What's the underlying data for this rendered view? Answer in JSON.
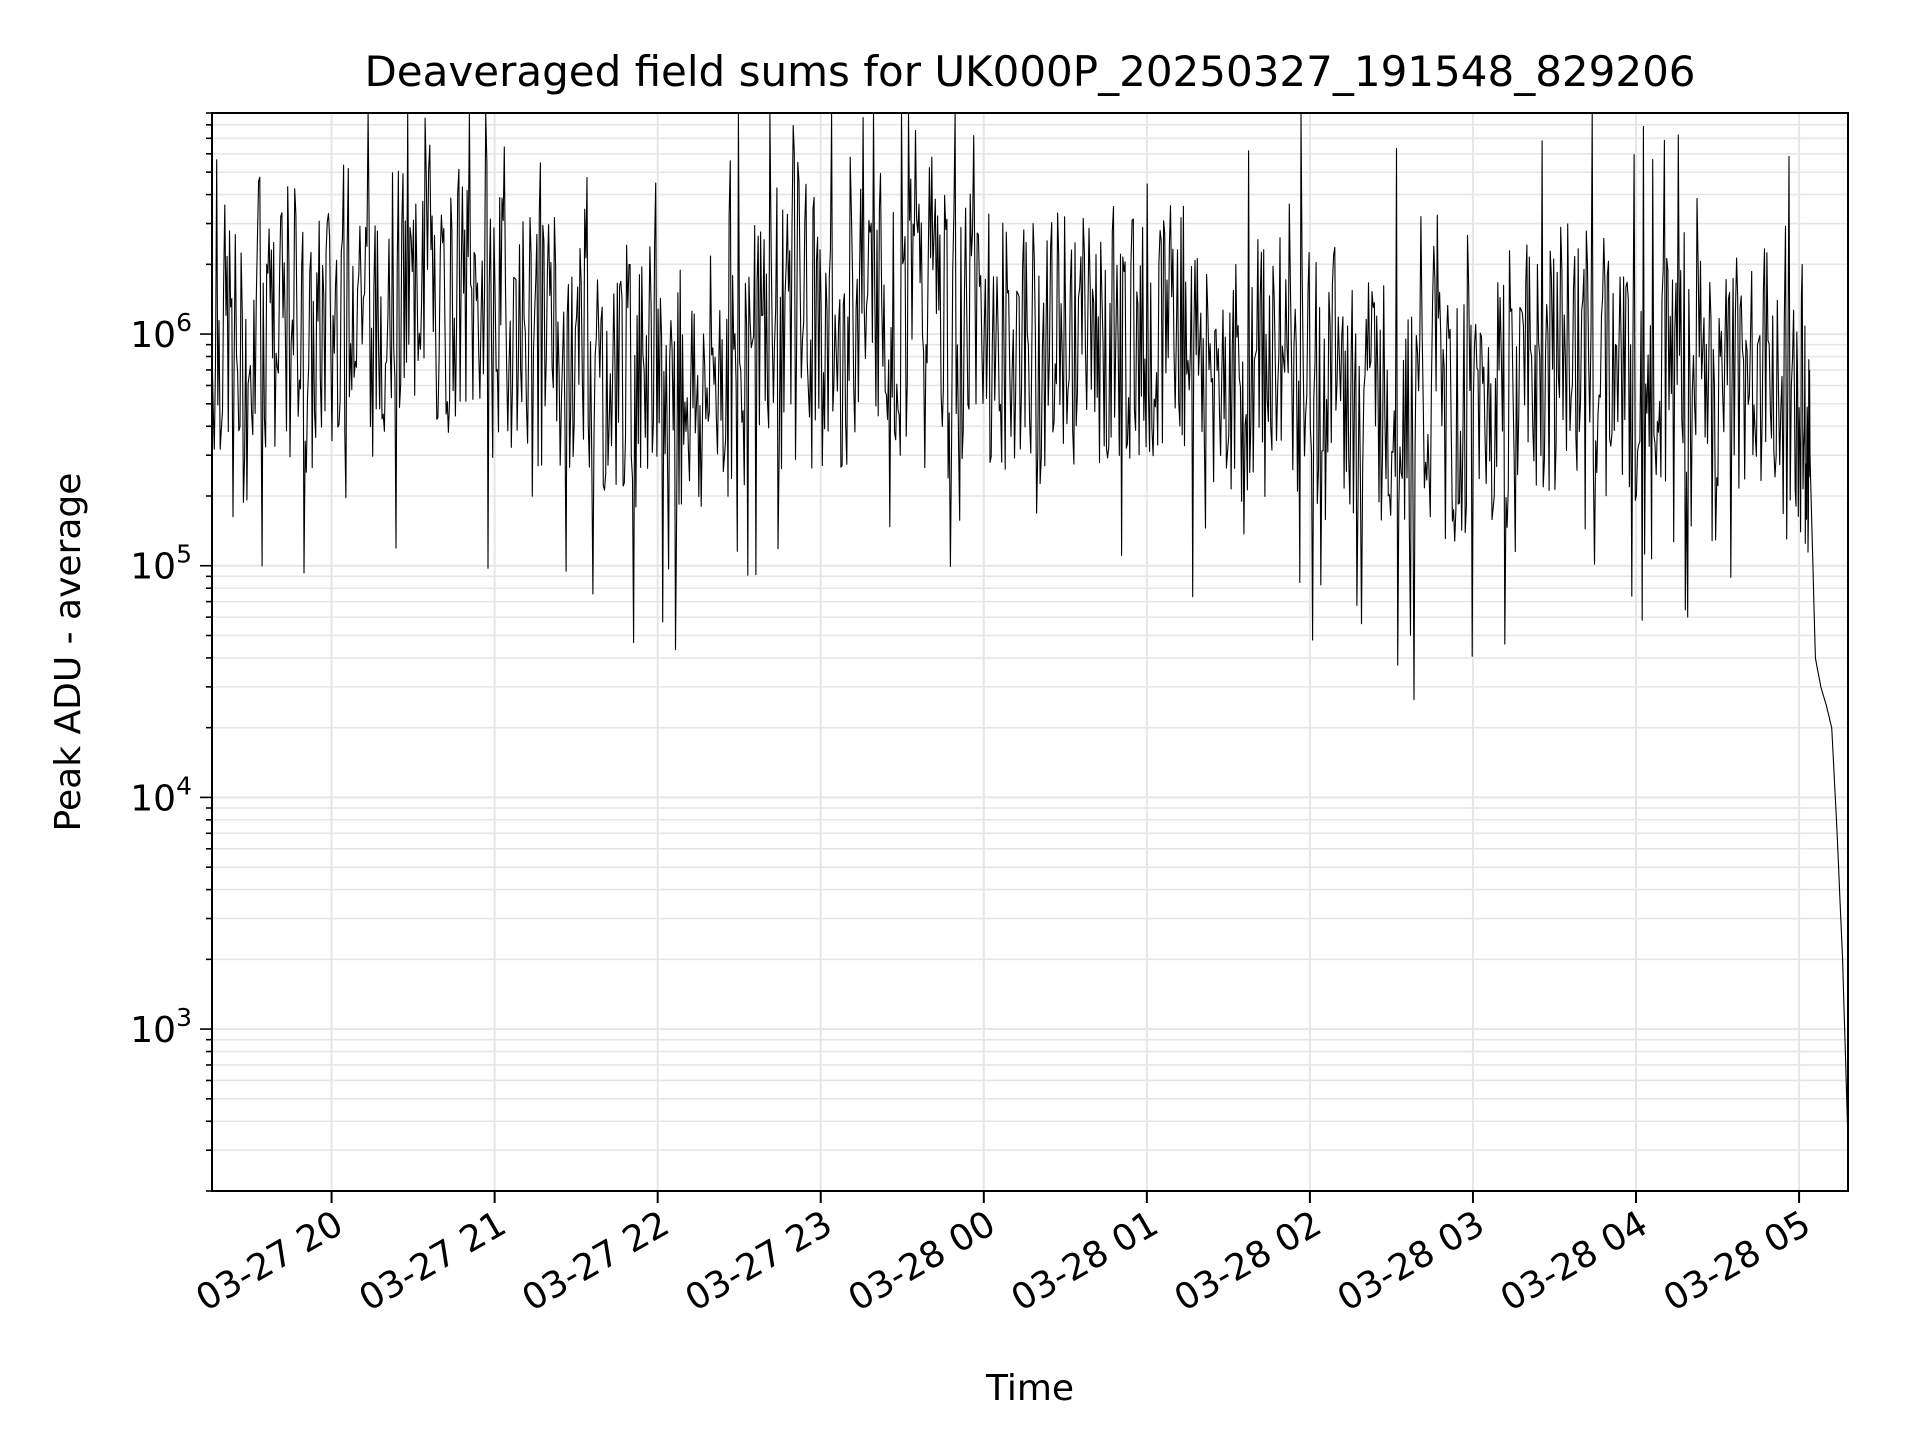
{
  "chart_data": {
    "type": "line",
    "title": "Deaveraged field sums for UK000P_20250327_191548_829206",
    "xlabel": "Time",
    "ylabel": "Peak ADU - average",
    "yscale": "log",
    "ylim": [
      200,
      9000000
    ],
    "xlim": [
      "03-27 19:16",
      "03-28 05:18"
    ],
    "grid": true,
    "colors": {
      "line": "#000000",
      "grid": "#e6e6e6",
      "axis": "#000000"
    },
    "x_ticks": [
      "03-27 20",
      "03-27 21",
      "03-27 22",
      "03-27 23",
      "03-28 00",
      "03-28 01",
      "03-28 02",
      "03-28 03",
      "03-28 04",
      "03-28 05"
    ],
    "y_ticks": [
      {
        "base": "10",
        "exp": "3",
        "value": 1000
      },
      {
        "base": "10",
        "exp": "4",
        "value": 10000
      },
      {
        "base": "10",
        "exp": "5",
        "value": 100000
      },
      {
        "base": "10",
        "exp": "6",
        "value": 1000000
      }
    ],
    "series": [
      {
        "x": [
          "03-27 19:16",
          "03-27 19:22",
          "03-27 19:28",
          "03-27 19:34",
          "03-27 19:40",
          "03-27 19:46",
          "03-27 19:52",
          "03-27 19:58",
          "03-27 20:04",
          "03-27 20:10",
          "03-27 20:16",
          "03-27 20:22",
          "03-27 20:28",
          "03-27 20:34",
          "03-27 20:40",
          "03-27 20:46",
          "03-27 20:52",
          "03-27 20:58",
          "03-27 21:04",
          "03-27 21:10",
          "03-27 21:16",
          "03-27 21:22",
          "03-27 21:28",
          "03-27 21:34",
          "03-27 21:40",
          "03-27 21:46",
          "03-27 21:52",
          "03-27 21:58",
          "03-27 22:04",
          "03-27 22:10",
          "03-27 22:16",
          "03-27 22:22",
          "03-27 22:28",
          "03-27 22:34",
          "03-27 22:40",
          "03-27 22:46",
          "03-27 22:52",
          "03-27 22:58",
          "03-27 23:04",
          "03-27 23:10",
          "03-27 23:16",
          "03-27 23:22",
          "03-27 23:28",
          "03-27 23:34",
          "03-27 23:40",
          "03-27 23:46",
          "03-27 23:52",
          "03-27 23:58",
          "03-28 00:04",
          "03-28 00:10",
          "03-28 00:16",
          "03-28 00:22",
          "03-28 00:28",
          "03-28 00:34",
          "03-28 00:40",
          "03-28 00:46",
          "03-28 00:52",
          "03-28 00:58",
          "03-28 01:04",
          "03-28 01:10",
          "03-28 01:16",
          "03-28 01:22",
          "03-28 01:28",
          "03-28 01:34",
          "03-28 01:40",
          "03-28 01:46",
          "03-28 01:52",
          "03-28 01:58",
          "03-28 02:04",
          "03-28 02:10",
          "03-28 02:16",
          "03-28 02:22",
          "03-28 02:28",
          "03-28 02:34",
          "03-28 02:40",
          "03-28 02:46",
          "03-28 02:52",
          "03-28 02:58",
          "03-28 03:04",
          "03-28 03:10",
          "03-28 03:16",
          "03-28 03:22",
          "03-28 03:28",
          "03-28 03:34",
          "03-28 03:40",
          "03-28 03:46",
          "03-28 03:52",
          "03-28 03:58",
          "03-28 04:04",
          "03-28 04:10",
          "03-28 04:16",
          "03-28 04:22",
          "03-28 04:28",
          "03-28 04:34",
          "03-28 04:40",
          "03-28 04:46",
          "03-28 04:52",
          "03-28 04:58",
          "03-28 05:02",
          "03-28 05:04",
          "03-28 05:06",
          "03-28 05:08",
          "03-28 05:10",
          "03-28 05:12",
          "03-28 05:14",
          "03-28 05:16",
          "03-28 05:18"
        ],
        "y": [
          900000,
          1100000,
          600000,
          1300000,
          800000,
          1600000,
          700000,
          1200000,
          1500000,
          2000000,
          900000,
          1800000,
          1400000,
          2200000,
          1100000,
          1600000,
          1300000,
          1700000,
          1000000,
          1400000,
          800000,
          1100000,
          700000,
          950000,
          650000,
          800000,
          600000,
          750000,
          500000,
          700000,
          450000,
          800000,
          600000,
          900000,
          1200000,
          1500000,
          1800000,
          1100000,
          800000,
          900000,
          1300000,
          1600000,
          1100000,
          1400000,
          2000000,
          1200000,
          1000000,
          1500000,
          800000,
          900000,
          1000000,
          750000,
          1100000,
          900000,
          1200000,
          800000,
          1000000,
          900000,
          1100000,
          1400000,
          900000,
          800000,
          700000,
          600000,
          750000,
          900000,
          650000,
          700000,
          600000,
          750000,
          500000,
          650000,
          450000,
          550000,
          400000,
          500000,
          350000,
          450000,
          500000,
          600000,
          700000,
          800000,
          650000,
          900000,
          750000,
          1000000,
          800000,
          600000,
          900000,
          700000,
          950000,
          800000,
          650000,
          900000,
          700000,
          800000,
          600000,
          500000,
          450000,
          300000,
          40000,
          30000,
          25000,
          20000,
          7000,
          2000,
          330
        ]
      }
    ]
  }
}
